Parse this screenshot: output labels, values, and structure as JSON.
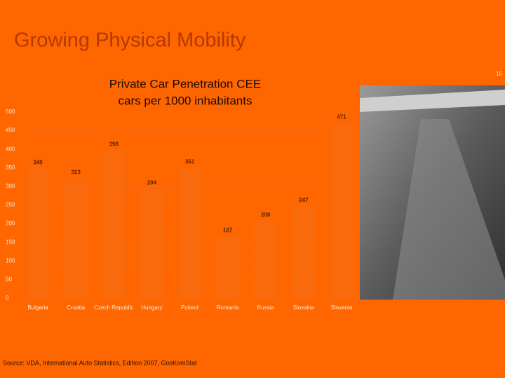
{
  "slide": {
    "title": "Growing Physical Mobility",
    "page_number": "16",
    "source": "Source: VDA, International Auto Statistics, Edition 2007, GosKomStat"
  },
  "chart_data": {
    "type": "bar",
    "title": "Private Car Penetration CEE",
    "subtitle": "cars per 1000 inhabitants",
    "categories": [
      "Bulgaria",
      "Croatia",
      "Czech Republic",
      "Hungary",
      "Poland",
      "Romania",
      "Russia",
      "Slovakia",
      "Slovenia"
    ],
    "values": [
      349,
      323,
      398,
      294,
      351,
      167,
      208,
      247,
      471
    ],
    "color": "#f86a0c",
    "ylim": [
      0,
      500
    ],
    "yticks": [
      0,
      50,
      100,
      150,
      200,
      250,
      300,
      350,
      400,
      450,
      500
    ],
    "grid": true
  }
}
